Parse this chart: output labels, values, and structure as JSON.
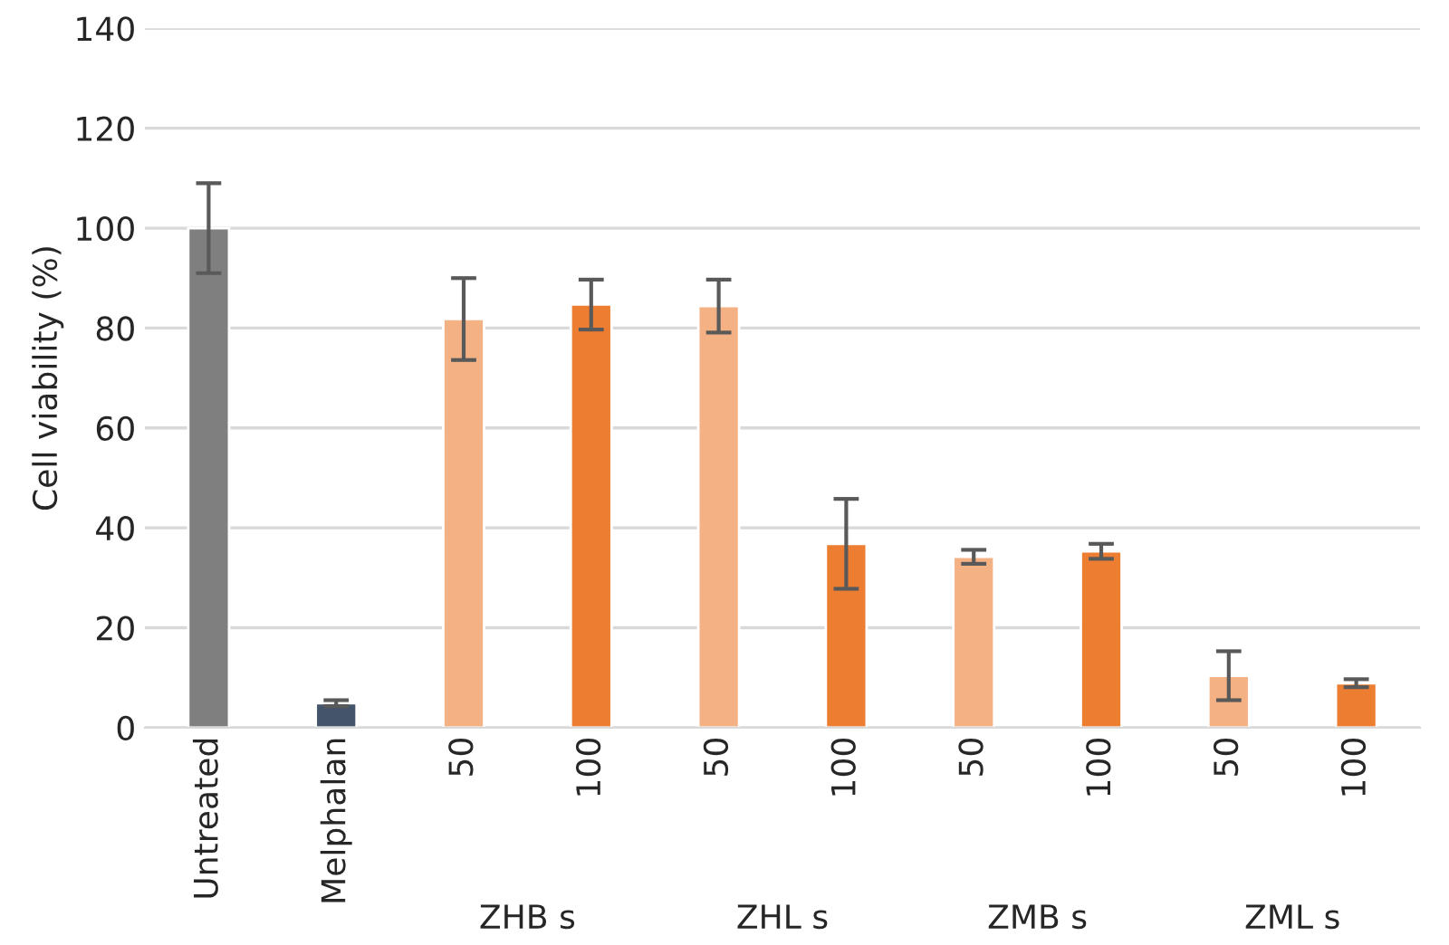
{
  "chart_data": {
    "type": "bar",
    "ylabel": "Cell viability (%)",
    "categories": [
      "Untreated",
      "Melphalan",
      "50",
      "100",
      "50",
      "100",
      "50",
      "100",
      "50",
      "100"
    ],
    "values": [
      100,
      4.9,
      81.8,
      84.7,
      84.4,
      36.8,
      34.2,
      35.3,
      10.4,
      8.9
    ],
    "errors": [
      9,
      0.6,
      8.2,
      5,
      5.3,
      9,
      1.4,
      1.5,
      4.9,
      0.8
    ],
    "colors": [
      "#7f7f7f",
      "#44546a",
      "#f4b183",
      "#ed7d31",
      "#f4b183",
      "#ed7d31",
      "#f4b183",
      "#ed7d31",
      "#f4b183",
      "#ed7d31"
    ],
    "annotations": [
      "ZHB s",
      "ZHL s",
      "ZMB s",
      "ZML s"
    ],
    "ylim": [
      0,
      140
    ],
    "yticks": [
      0,
      20,
      40,
      60,
      80,
      100,
      120,
      140
    ],
    "grid": "y"
  }
}
